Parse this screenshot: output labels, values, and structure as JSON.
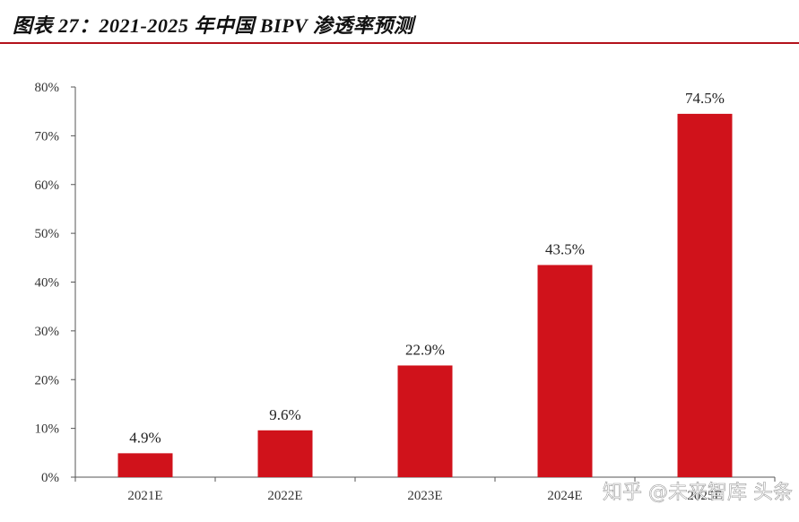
{
  "title": "图表 27：2021-2025 年中国 BIPV 渗透率预测",
  "colors": {
    "bar": "#d0121b",
    "title_rule": "#b3121b",
    "axis": "#555555"
  },
  "watermark": "知乎 @未来智库 头条 @未来智库",
  "chart_data": {
    "type": "bar",
    "categories": [
      "2021E",
      "2022E",
      "2023E",
      "2024E",
      "2025E"
    ],
    "values": [
      4.9,
      9.6,
      22.9,
      43.5,
      74.5
    ],
    "value_labels": [
      "4.9%",
      "9.6%",
      "22.9%",
      "43.5%",
      "74.5%"
    ],
    "ylim": [
      0,
      80
    ],
    "yticks": [
      0,
      10,
      20,
      30,
      40,
      50,
      60,
      70,
      80
    ],
    "ytick_labels": [
      "0%",
      "10%",
      "20%",
      "30%",
      "40%",
      "50%",
      "60%",
      "70%",
      "80%"
    ],
    "grid": false,
    "legend": "none"
  }
}
